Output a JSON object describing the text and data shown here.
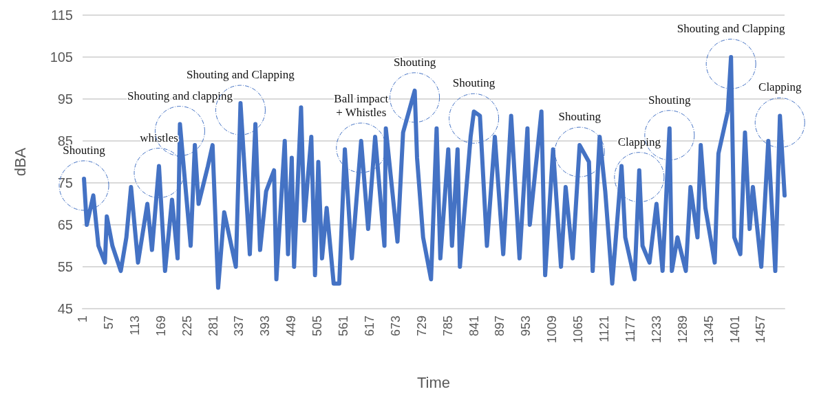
{
  "chart_data": {
    "type": "line",
    "xlabel": "Time",
    "ylabel": "dBA",
    "x": [
      4,
      10,
      24,
      35,
      49,
      53,
      65,
      83,
      95,
      105,
      120,
      140,
      150,
      165,
      178,
      193,
      205,
      210,
      233,
      242,
      250,
      270,
      280,
      292,
      305,
      330,
      340,
      360,
      372,
      382,
      395,
      412,
      417,
      435,
      442,
      450,
      455,
      470,
      477,
      492,
      500,
      507,
      515,
      525,
      540,
      552,
      564,
      579,
      599,
      614,
      629,
      649,
      652,
      677,
      689,
      699,
      714,
      719,
      732,
      749,
      761,
      769,
      786,
      794,
      806,
      811,
      834,
      841,
      854,
      869,
      886,
      904,
      921,
      939,
      956,
      961,
      986,
      994,
      1011,
      1028,
      1038,
      1053,
      1068,
      1088,
      1096,
      1111,
      1123,
      1138,
      1158,
      1166,
      1186,
      1196,
      1203,
      1218,
      1233,
      1246,
      1261,
      1266,
      1278,
      1296,
      1306,
      1321,
      1328,
      1338,
      1358,
      1366,
      1386,
      1393,
      1400,
      1413,
      1423,
      1433,
      1440,
      1458,
      1473,
      1488,
      1498,
      1508
    ],
    "series": [
      {
        "color": "#4472c4",
        "values": [
          76,
          65,
          72,
          60,
          56,
          67,
          60,
          54,
          62,
          74,
          56,
          70,
          59,
          79,
          54,
          71,
          57,
          89,
          60,
          84,
          70,
          79,
          84,
          50,
          68,
          55,
          94,
          58,
          89,
          59,
          73,
          78,
          52,
          85,
          58,
          81,
          55,
          93,
          66,
          86,
          53,
          80,
          57,
          69,
          51,
          51,
          83,
          57,
          85,
          64,
          86,
          60,
          88,
          61,
          87,
          91,
          97,
          81,
          62,
          52,
          88,
          57,
          83,
          60,
          83,
          55,
          86,
          92,
          91,
          60,
          86,
          58,
          91,
          57,
          88,
          65,
          92,
          53,
          83,
          55,
          74,
          57,
          84,
          80,
          54,
          86,
          73,
          51,
          79,
          62,
          52,
          78,
          60,
          56,
          70,
          54,
          88,
          54,
          62,
          54,
          74,
          62,
          84,
          69,
          56,
          82,
          92,
          105,
          62,
          58,
          87,
          64,
          74,
          55,
          85,
          54,
          91,
          72
        ]
      }
    ],
    "xlim": [
      1,
      1508
    ],
    "xticks": [
      1,
      57,
      113,
      169,
      225,
      281,
      337,
      393,
      449,
      505,
      561,
      617,
      673,
      729,
      785,
      841,
      897,
      953,
      1009,
      1065,
      1121,
      1177,
      1233,
      1289,
      1345,
      1401,
      1457
    ],
    "ylim": [
      45,
      115
    ],
    "yticks": [
      45,
      55,
      65,
      75,
      85,
      95,
      105,
      115
    ],
    "grid": "y",
    "marker": "none",
    "line_style": "solid",
    "annotations": [
      {
        "text": "Shouting",
        "x": 4,
        "y": 76
      },
      {
        "text": "whistles",
        "x": 165,
        "y": 79
      },
      {
        "text": "Shouting and clapping",
        "x": 210,
        "y": 89
      },
      {
        "text": "Shouting and Clapping",
        "x": 340,
        "y": 94
      },
      {
        "text": "Ball impact\n+ Whistles",
        "x": 599,
        "y": 85
      },
      {
        "text": "Shouting",
        "x": 714,
        "y": 97
      },
      {
        "text": "Shouting",
        "x": 841,
        "y": 92
      },
      {
        "text": "Shouting",
        "x": 1068,
        "y": 84
      },
      {
        "text": "Clapping",
        "x": 1196,
        "y": 78
      },
      {
        "text": "Shouting",
        "x": 1261,
        "y": 88
      },
      {
        "text": "Shouting and Clapping",
        "x": 1393,
        "y": 105
      },
      {
        "text": "Clapping",
        "x": 1498,
        "y": 91
      }
    ]
  }
}
